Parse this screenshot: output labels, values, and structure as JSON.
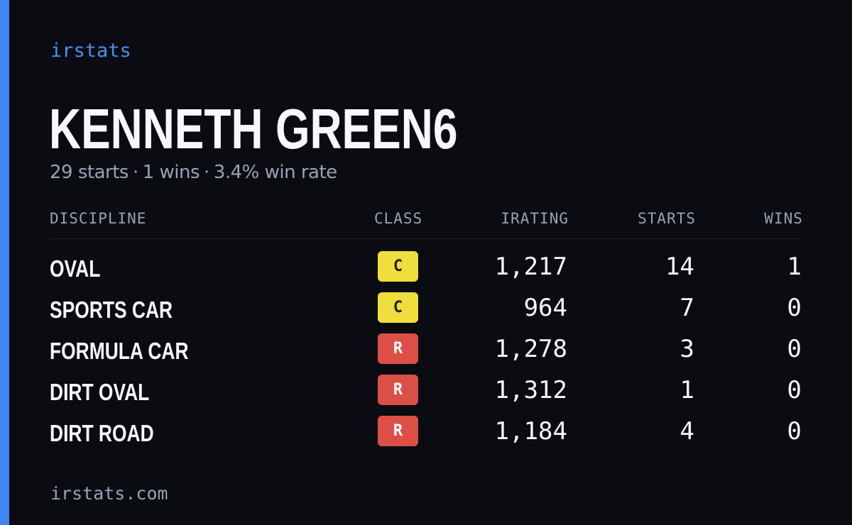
{
  "brand": "irstats",
  "driver": {
    "name": "KENNETH GREEN6",
    "starts_text": "29 starts",
    "wins_text": "1 wins",
    "win_rate_text": "3.4% win rate",
    "separator": "·"
  },
  "table": {
    "headers": {
      "discipline": "DISCIPLINE",
      "class": "CLASS",
      "irating": "IRATING",
      "starts": "STARTS",
      "wins": "WINS"
    },
    "rows": [
      {
        "discipline": "OVAL",
        "class": "C",
        "irating": "1,217",
        "starts": "14",
        "wins": "1"
      },
      {
        "discipline": "SPORTS CAR",
        "class": "C",
        "irating": "964",
        "starts": "7",
        "wins": "0"
      },
      {
        "discipline": "FORMULA CAR",
        "class": "R",
        "irating": "1,278",
        "starts": "3",
        "wins": "0"
      },
      {
        "discipline": "DIRT OVAL",
        "class": "R",
        "irating": "1,312",
        "starts": "1",
        "wins": "0"
      },
      {
        "discipline": "DIRT ROAD",
        "class": "R",
        "irating": "1,184",
        "starts": "4",
        "wins": "0"
      }
    ]
  },
  "class_colors": {
    "C": {
      "bg": "#efde3c",
      "fg": "#23201a"
    },
    "R": {
      "bg": "#dc4f47",
      "fg": "#ffffff"
    }
  },
  "accent_color": "#3f86f2",
  "footer": "irstats.com"
}
